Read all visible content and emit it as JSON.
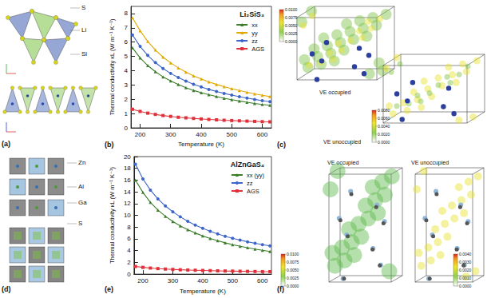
{
  "chart_data": [
    {
      "type": "line",
      "title": "Li₂SiS₃",
      "xlabel": "Temperature (K)",
      "ylabel": "Thermal conductivity κL (W m⁻¹ K⁻¹)",
      "x": [
        175,
        200,
        225,
        250,
        275,
        300,
        325,
        350,
        375,
        400,
        425,
        450,
        475,
        500,
        525,
        550,
        575,
        600,
        625
      ],
      "xlim": [
        170,
        630
      ],
      "xticks": [
        200,
        300,
        400,
        500,
        600
      ],
      "ylim": [
        0,
        8.5
      ],
      "yticks": [
        0,
        1,
        2,
        3,
        4,
        5,
        6,
        7,
        8
      ],
      "grid": false,
      "legend": "upper right",
      "series": [
        {
          "name": "xx",
          "color": "#3b7d2a",
          "marker": "triangle",
          "values": [
            5.6,
            4.9,
            4.36,
            3.93,
            3.57,
            3.28,
            3.03,
            2.81,
            2.62,
            2.46,
            2.32,
            2.19,
            2.07,
            1.97,
            1.88,
            1.79,
            1.71,
            1.64,
            1.58
          ]
        },
        {
          "name": "yy",
          "color": "#e0a800",
          "marker": "triangle",
          "values": [
            7.7,
            6.8,
            6.05,
            5.45,
            4.95,
            4.55,
            4.2,
            3.9,
            3.64,
            3.42,
            3.22,
            3.04,
            2.88,
            2.74,
            2.61,
            2.49,
            2.38,
            2.28,
            2.19
          ]
        },
        {
          "name": "zz",
          "color": "#3d64c8",
          "marker": "circle",
          "values": [
            6.5,
            5.7,
            5.07,
            4.57,
            4.15,
            3.81,
            3.52,
            3.27,
            3.05,
            2.86,
            2.69,
            2.54,
            2.41,
            2.29,
            2.18,
            2.08,
            1.99,
            1.9,
            1.83
          ]
        },
        {
          "name": "AGS",
          "color": "#e0303a",
          "marker": "square",
          "values": [
            1.3,
            1.15,
            1.03,
            0.94,
            0.86,
            0.8,
            0.74,
            0.7,
            0.66,
            0.62,
            0.59,
            0.56,
            0.53,
            0.51,
            0.49,
            0.47,
            0.45,
            0.43,
            0.42
          ]
        }
      ]
    },
    {
      "type": "line",
      "title": "AlZnGaS₄",
      "xlabel": "Temperature (K)",
      "ylabel": "Thermal conductivity κL (W m⁻¹ K⁻¹)",
      "x": [
        175,
        200,
        225,
        250,
        275,
        300,
        325,
        350,
        375,
        400,
        425,
        450,
        475,
        500,
        525,
        550,
        575,
        600,
        625
      ],
      "xlim": [
        170,
        630
      ],
      "xticks": [
        200,
        300,
        400,
        500,
        600
      ],
      "ylim": [
        0,
        20
      ],
      "yticks": [
        0,
        2,
        4,
        6,
        8,
        10,
        12,
        14,
        16,
        18,
        20
      ],
      "grid": false,
      "legend": "upper right",
      "series": [
        {
          "name": "xx (yy)",
          "color": "#3b7d2a",
          "marker": "triangle",
          "values": [
            16.0,
            13.9,
            12.2,
            10.9,
            9.85,
            8.95,
            8.2,
            7.55,
            7.0,
            6.5,
            6.07,
            5.68,
            5.33,
            5.02,
            4.74,
            4.49,
            4.26,
            4.05,
            3.86
          ]
        },
        {
          "name": "zz",
          "color": "#3d64c8",
          "marker": "circle",
          "values": [
            18.7,
            16.2,
            14.3,
            12.8,
            11.6,
            10.6,
            9.75,
            9.0,
            8.35,
            7.8,
            7.3,
            6.85,
            6.45,
            6.1,
            5.8,
            5.5,
            5.25,
            5.0,
            4.8
          ]
        },
        {
          "name": "AGS",
          "color": "#e0303a",
          "marker": "square",
          "values": [
            1.3,
            1.15,
            1.03,
            0.94,
            0.86,
            0.8,
            0.74,
            0.7,
            0.66,
            0.62,
            0.59,
            0.56,
            0.53,
            0.51,
            0.49,
            0.47,
            0.45,
            0.43,
            0.42
          ]
        }
      ]
    }
  ],
  "panels": {
    "a": {
      "label": "(a)",
      "atoms": [
        "S",
        "Li",
        "Si"
      ]
    },
    "b": {
      "label": "(b)"
    },
    "c": {
      "label": "(c)",
      "maps": [
        {
          "title": "VE occupied",
          "colorbar": {
            "range": [
              0,
              0.01
            ],
            "ticks": [
              {
                "value": 0.01,
                "label": "0.0100"
              },
              {
                "value": 0.0075,
                "label": "0.0075"
              },
              {
                "value": 0.005,
                "label": "0.0050"
              },
              {
                "value": 0.0025,
                "label": "0.0025"
              },
              {
                "value": 0,
                "label": "0.0000"
              }
            ]
          }
        },
        {
          "title": "VE unoccupied",
          "colorbar": {
            "range": [
              0,
              0.008
            ],
            "ticks": [
              {
                "value": 0.008,
                "label": "0.0080"
              },
              {
                "value": 0.006,
                "label": "0.0060"
              },
              {
                "value": 0.004,
                "label": "0.0040"
              },
              {
                "value": 0.002,
                "label": "0.0020"
              },
              {
                "value": 0,
                "label": "0.0000"
              }
            ]
          }
        }
      ]
    },
    "d": {
      "label": "(d)",
      "atoms": [
        "Zn",
        "Al",
        "Ga",
        "S"
      ]
    },
    "e": {
      "label": "(e)"
    },
    "f": {
      "label": "(f)",
      "maps": [
        {
          "title": "VE occupied",
          "colorbar": {
            "range": [
              0,
              0.01
            ],
            "ticks": [
              {
                "value": 0.01,
                "label": "0.0100"
              },
              {
                "value": 0.0075,
                "label": "0.0075"
              },
              {
                "value": 0.005,
                "label": "0.0050"
              },
              {
                "value": 0.0025,
                "label": "0.0025"
              },
              {
                "value": 0,
                "label": "0.0000"
              }
            ]
          }
        },
        {
          "title": "VE unoccupied",
          "colorbar": {
            "range": [
              0,
              0.004
            ],
            "ticks": [
              {
                "value": 0.004,
                "label": "0.0040"
              },
              {
                "value": 0.003,
                "label": "0.0030"
              },
              {
                "value": 0.002,
                "label": "0.0020"
              },
              {
                "value": 0.001,
                "label": "0.0010"
              },
              {
                "value": 0,
                "label": "0.0000"
              }
            ]
          }
        }
      ]
    }
  }
}
